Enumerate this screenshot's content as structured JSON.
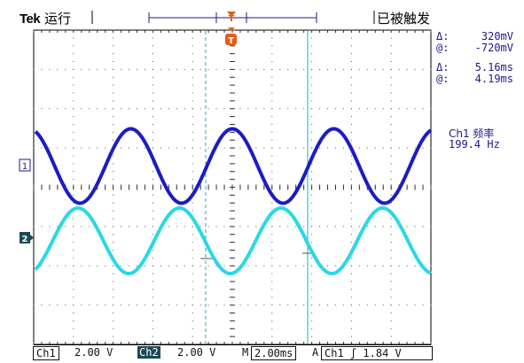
{
  "header": {
    "brand": "Tek",
    "run_state": "运行",
    "trigger_status": "已被触发"
  },
  "cursor_readout": {
    "amplitude_delta_symbol": "Δ:",
    "amplitude_delta": "320mV",
    "amplitude_at_symbol": "@:",
    "amplitude_at": "-720mV",
    "time_delta_symbol": "Δ:",
    "time_delta": "5.16ms",
    "time_at_symbol": "@:",
    "time_at": "4.19ms"
  },
  "measurement": {
    "label": "Ch1 频率",
    "value": "199.4 Hz"
  },
  "markers": {
    "ch1": "1",
    "ch2": "2",
    "trigger_top": "T",
    "trigger_pos": "T"
  },
  "status_bar": {
    "ch1_label": "Ch1",
    "ch1_scale": "2.00 V",
    "ch2_label": "Ch2",
    "ch2_scale": "2.00 V",
    "timebase_label": "M",
    "timebase": "2.00ms",
    "trigger_mode": "A",
    "trigger_source": "Ch1",
    "trigger_slope": "ʃ",
    "trigger_level": "1.84 V"
  },
  "colors": {
    "ch1": "#1c1cc4",
    "ch2": "#2ad8e6",
    "trigger": "#e85a10",
    "text": "#1a1a8a"
  }
}
